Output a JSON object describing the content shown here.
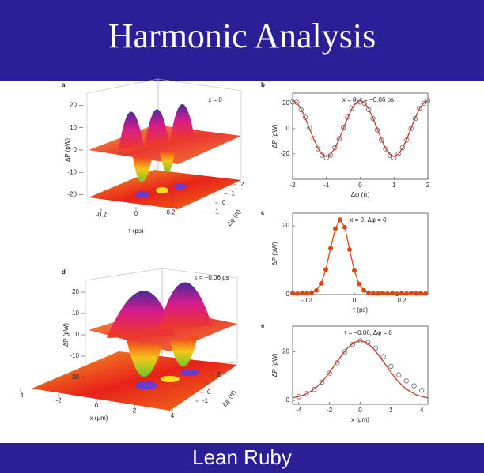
{
  "title": "Harmonic Analysis",
  "author": "Lean Ruby",
  "chart_data": [
    {
      "type": "surface",
      "label": "a",
      "annotation": "x = 0",
      "zlabel": "ΔP (pW)",
      "xlabel": "τ (ps)",
      "ylabel": "Δφ (π)",
      "zticks": [
        20,
        10,
        0,
        -10,
        -20
      ],
      "xticks": [
        -0.2,
        0,
        0.2
      ],
      "yticks": [
        -1,
        0,
        1,
        2
      ]
    },
    {
      "type": "line",
      "label": "b",
      "annotation": "x = 0, τ = −0.06 ps",
      "xlabel": "Δφ (π)",
      "ylabel": "ΔP (pW)",
      "x": [
        -2,
        -1.875,
        -1.75,
        -1.625,
        -1.5,
        -1.375,
        -1.25,
        -1.125,
        -1,
        -0.875,
        -0.75,
        -0.625,
        -0.5,
        -0.375,
        -0.25,
        -0.125,
        0,
        0.125,
        0.25,
        0.375,
        0.5,
        0.625,
        0.75,
        0.875,
        1,
        1.125,
        1.25,
        1.375,
        1.5,
        1.625,
        1.75,
        1.875,
        2
      ],
      "series": [
        {
          "color": "#555555",
          "marker": "circle-open",
          "values": [
            21,
            20.8,
            15,
            9,
            0.5,
            -8,
            -16,
            -21,
            -23,
            -21,
            -15,
            -8,
            1,
            9,
            16,
            21,
            21,
            20,
            15,
            8,
            -1,
            -9,
            -16,
            -21,
            -23,
            -20,
            -15,
            -9,
            0,
            8,
            16,
            20,
            22
          ]
        },
        {
          "color": "#c0392b",
          "line": true,
          "values": [
            22,
            20.3,
            15.6,
            8.4,
            0,
            -8.4,
            -15.6,
            -20.3,
            -22,
            -20.3,
            -15.6,
            -8.4,
            0,
            8.4,
            15.6,
            20.3,
            22,
            20.3,
            15.6,
            8.4,
            0,
            -8.4,
            -15.6,
            -20.3,
            -22,
            -20.3,
            -15.6,
            -8.4,
            0,
            8.4,
            15.6,
            20.3,
            22
          ]
        }
      ],
      "xlim": [
        -2,
        2
      ],
      "ylim": [
        -40,
        28
      ],
      "xticks": [
        -2,
        -1,
        0,
        1,
        2
      ],
      "yticks": [
        -20,
        0,
        20
      ]
    },
    {
      "type": "line",
      "label": "c",
      "annotation": "x = 0, Δφ = 0",
      "xlabel": "τ (ps)",
      "ylabel": "ΔP (pW)",
      "x": [
        -0.26,
        -0.24,
        -0.22,
        -0.2,
        -0.18,
        -0.16,
        -0.14,
        -0.12,
        -0.1,
        -0.08,
        -0.06,
        -0.04,
        -0.02,
        0,
        0.02,
        0.04,
        0.06,
        0.08,
        0.1,
        0.12,
        0.14,
        0.16,
        0.18,
        0.2,
        0.22,
        0.24,
        0.26,
        0.28,
        0.3
      ],
      "series": [
        {
          "color": "#d9480f",
          "marker": "circle-filled",
          "line": true,
          "values": [
            0.4,
            0.3,
            0.5,
            0.4,
            0.6,
            1.2,
            3.2,
            7.3,
            13.5,
            19.2,
            21.8,
            19.6,
            13.1,
            7,
            3.1,
            1.2,
            0.6,
            0.4,
            0.3,
            0.5,
            0.3,
            0.4,
            0.2,
            0.4,
            0.3,
            0.5,
            0.3,
            0.4,
            0.3
          ]
        }
      ],
      "xlim": [
        -0.26,
        0.31
      ],
      "ylim": [
        0,
        23.7
      ],
      "xticks": [
        -0.2,
        0,
        0.2
      ],
      "yticks": [
        0,
        20
      ]
    },
    {
      "type": "surface",
      "label": "d",
      "annotation": "τ = −0.06 ps",
      "zlabel": "ΔP (pW)",
      "xlabel": "x (μm)",
      "ylabel": "Δφ (π)",
      "zticks": [
        20,
        10,
        0,
        -10,
        -20
      ],
      "xticks": [
        -4,
        -2,
        0,
        2,
        4
      ],
      "yticks": [
        -1,
        0,
        1,
        2
      ]
    },
    {
      "type": "line",
      "label": "e",
      "annotation": "τ = −0.06, Δφ = 0",
      "xlabel": "x (μm)",
      "ylabel": "ΔP (pW)",
      "series": [
        {
          "color": "#555555",
          "marker": "circle-open",
          "x": [
            -4,
            -3.5,
            -3,
            -2.5,
            -2,
            -1.5,
            -1,
            -0.5,
            0,
            0.5,
            1,
            1.5,
            2,
            2.5,
            3,
            3.5,
            4
          ],
          "values": [
            1.5,
            2.8,
            4.5,
            7.5,
            11.2,
            15.5,
            20,
            23,
            24.5,
            23.8,
            21.5,
            18,
            14,
            10.5,
            8,
            6,
            4.2
          ]
        },
        {
          "color": "#c0392b",
          "line": true,
          "x": [
            -4.4,
            -4,
            -3.6,
            -3.2,
            -2.8,
            -2.4,
            -2,
            -1.6,
            -1.2,
            -0.8,
            -0.4,
            0,
            0.4,
            0.8,
            1.2,
            1.6,
            2,
            2.4,
            2.8,
            3.2,
            3.6,
            4,
            4.4
          ],
          "values": [
            1.1,
            1.6,
            2.4,
            3.8,
            5.7,
            8.3,
            11.5,
            15.1,
            18.6,
            21.7,
            23.8,
            24.5,
            23.8,
            21.7,
            18.6,
            15.1,
            11.5,
            8.3,
            5.7,
            3.8,
            2.4,
            1.6,
            1.1
          ]
        }
      ],
      "xlim": [
        -4.4,
        4.4
      ],
      "ylim": [
        -1.6,
        30.5
      ],
      "xticks": [
        -4,
        -2,
        0,
        2,
        4
      ],
      "yticks": [
        0,
        20
      ]
    }
  ]
}
